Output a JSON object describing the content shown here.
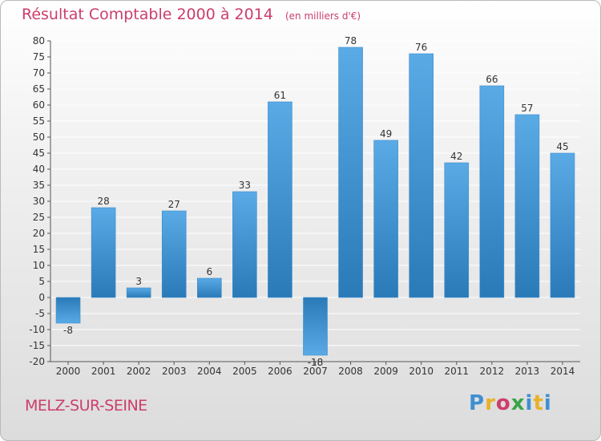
{
  "header": {
    "title": "Résultat Comptable 2000 à 2014",
    "unit": "(en milliers d'€)"
  },
  "commune": "MELZ-SUR-SEINE",
  "logo": {
    "letters": [
      "P",
      "r",
      "o",
      "x",
      "i",
      "t",
      "i"
    ],
    "text": "Proxiti"
  },
  "colors": {
    "title": "#cc3e6b",
    "bar_light": "#5aaae6",
    "bar_dark": "#2a7ab8",
    "grid": "#ffffff"
  },
  "chart_data": {
    "type": "bar",
    "title": "Résultat Comptable 2000 à 2014",
    "xlabel": "",
    "ylabel": "",
    "categories": [
      "2000",
      "2001",
      "2002",
      "2003",
      "2004",
      "2005",
      "2006",
      "2007",
      "2008",
      "2009",
      "2010",
      "2011",
      "2012",
      "2013",
      "2014"
    ],
    "values": [
      -8,
      28,
      3,
      27,
      6,
      33,
      61,
      -18,
      78,
      49,
      76,
      42,
      66,
      57,
      45
    ],
    "ylim": [
      -20,
      80
    ],
    "yticks": [
      80,
      75,
      70,
      65,
      60,
      55,
      50,
      45,
      40,
      35,
      30,
      25,
      20,
      15,
      10,
      5,
      0,
      -5,
      -10,
      -15,
      -20
    ],
    "grid": true,
    "legend": "none"
  }
}
